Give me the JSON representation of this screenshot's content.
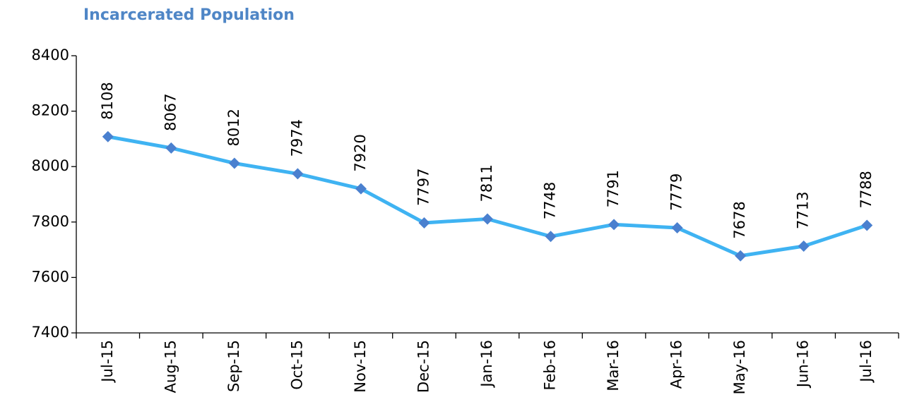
{
  "chart_data": {
    "type": "line",
    "title": "Incarcerated Population",
    "categories": [
      "Jul-15",
      "Aug-15",
      "Sep-15",
      "Oct-15",
      "Nov-15",
      "Dec-15",
      "Jan-16",
      "Feb-16",
      "Mar-16",
      "Apr-16",
      "May-16",
      "Jun-16",
      "Jul-16"
    ],
    "series": [
      {
        "name": "Incarcerated Population",
        "color": "#3fb3f2",
        "marker_color": "#4a80cf",
        "values": [
          8108,
          8067,
          8012,
          7974,
          7920,
          7797,
          7811,
          7748,
          7791,
          7779,
          7678,
          7713,
          7788
        ]
      }
    ],
    "ylim": [
      7400,
      8400
    ],
    "yticks": [
      7400,
      7600,
      7800,
      8000,
      8200,
      8400
    ],
    "grid": false
  }
}
